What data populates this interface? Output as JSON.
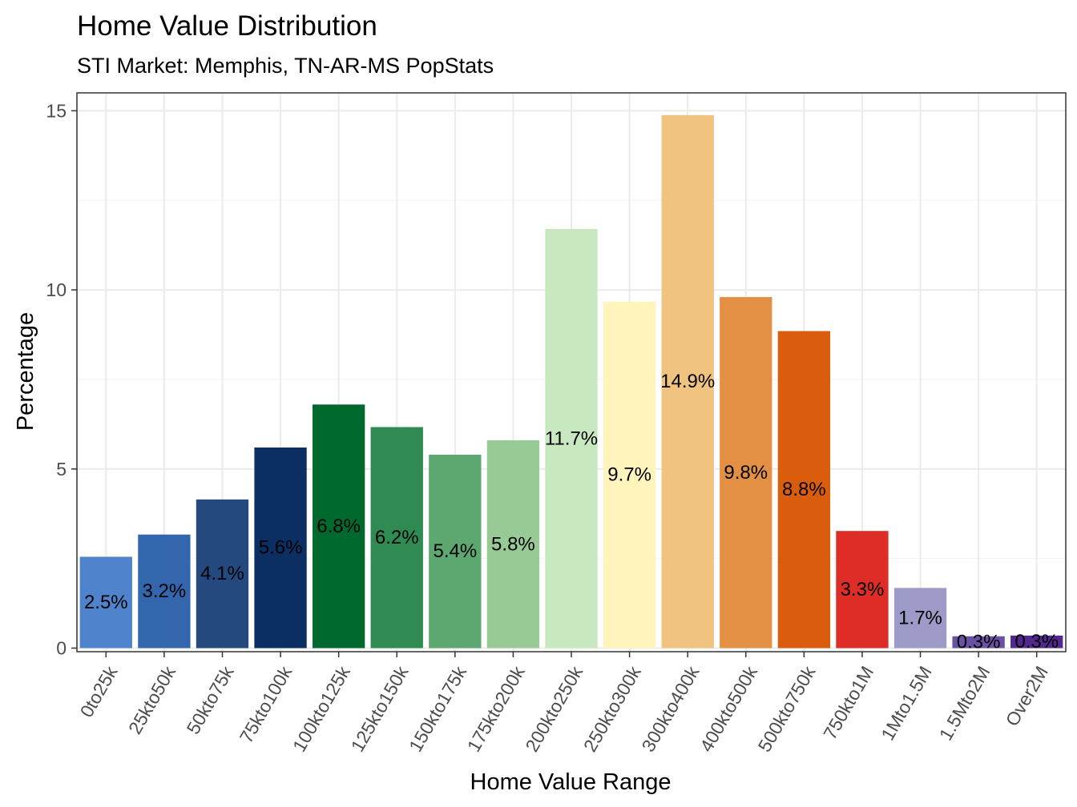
{
  "chart_data": {
    "type": "bar",
    "title": "Home Value Distribution",
    "subtitle": "STI Market: Memphis, TN-AR-MS PopStats",
    "xlabel": "Home Value Range",
    "ylabel": "Percentage",
    "ylim": [
      -0.1,
      15.5
    ],
    "y_ticks": [
      0,
      5,
      10,
      15
    ],
    "y_tick_labels": [
      "0",
      "5",
      "10",
      "15"
    ],
    "grid": true,
    "legend": "none",
    "categories": [
      "0to25k",
      "25kto50k",
      "50kto75k",
      "75kto100k",
      "100kto125k",
      "125kto150k",
      "150kto175k",
      "175kto200k",
      "200kto250k",
      "250kto300k",
      "300kto400k",
      "400kto500k",
      "500kto750k",
      "750kto1M",
      "1Mto1.5M",
      "1.5Mto2M",
      "Over2M"
    ],
    "values": [
      2.55,
      3.17,
      4.15,
      5.6,
      6.8,
      6.17,
      5.4,
      5.8,
      11.7,
      9.67,
      14.88,
      9.8,
      8.85,
      3.27,
      1.68,
      0.33,
      0.35
    ],
    "labels": [
      "2.5%",
      "3.2%",
      "4.1%",
      "5.6%",
      "6.8%",
      "6.2%",
      "5.4%",
      "5.8%",
      "11.7%",
      "9.7%",
      "14.9%",
      "9.8%",
      "8.8%",
      "3.3%",
      "1.7%",
      "0.3%",
      "0.3%"
    ],
    "colors": [
      "#4f84cd",
      "#3466ad",
      "#23497f",
      "#0b2f62",
      "#006a2e",
      "#2f8b52",
      "#5da770",
      "#97ca95",
      "#c8e8c0",
      "#fff5bc",
      "#f1c381",
      "#e39045",
      "#da5d0e",
      "#de2d26",
      "#9e9ac8",
      "#6a51a3",
      "#54278f"
    ]
  }
}
